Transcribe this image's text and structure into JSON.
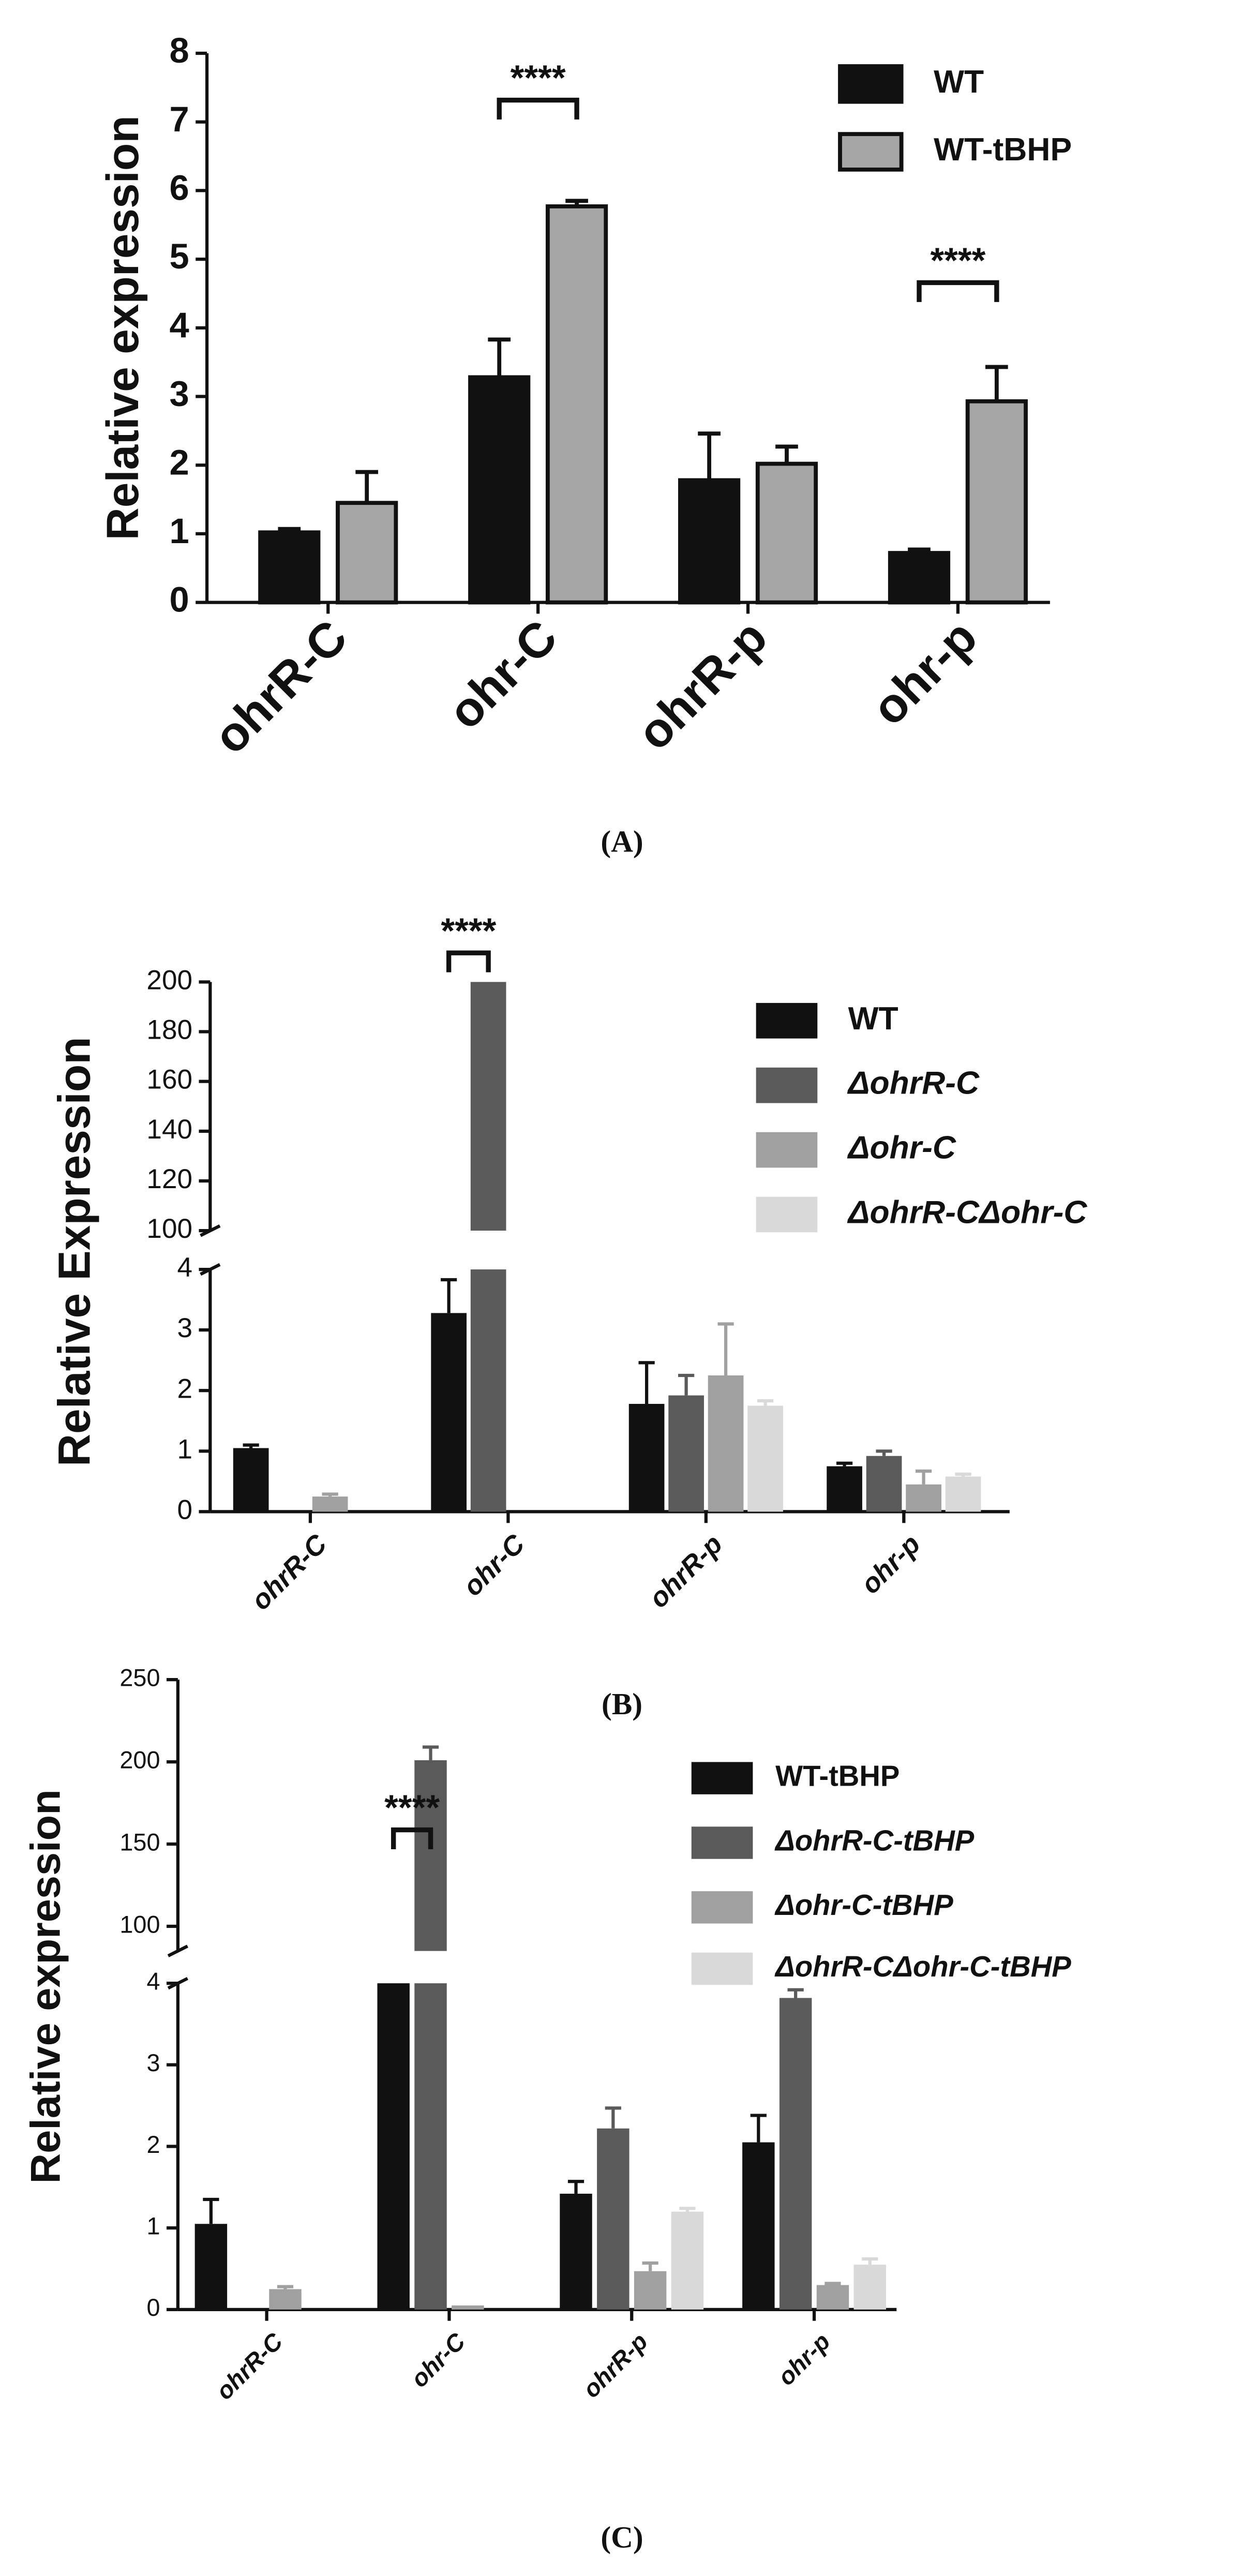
{
  "chart_data": [
    {
      "type": "bar",
      "panel_label": "(A)",
      "ylabel": "Relative expression",
      "categories": [
        "ohrR-C",
        "ohr-C",
        "ohrR-p",
        "ohr-p"
      ],
      "series": [
        {
          "name": "WT",
          "color": "#111111",
          "values": [
            1.02,
            3.28,
            1.78,
            0.72
          ],
          "errors": [
            0.05,
            0.55,
            0.68,
            0.05
          ]
        },
        {
          "name": "WT-tBHP",
          "color": "#a6a6a6",
          "values": [
            1.45,
            5.77,
            2.02,
            2.93
          ],
          "errors": [
            0.45,
            0.08,
            0.25,
            0.5
          ]
        }
      ],
      "ylim": [
        0,
        8
      ],
      "yticks": [
        0,
        1,
        2,
        3,
        4,
        5,
        6,
        7,
        8
      ],
      "annotations": [
        "****",
        "****"
      ]
    },
    {
      "type": "bar",
      "panel_label": "(B)",
      "ylabel": "Relative Expression",
      "categories": [
        "ohrR-C",
        "ohr-C",
        "ohrR-p",
        "ohr-p"
      ],
      "series": [
        {
          "name": "WT",
          "color": "#111111",
          "values": [
            1.05,
            3.28,
            1.78,
            0.75
          ],
          "errors": [
            0.05,
            0.55,
            0.68,
            0.05
          ]
        },
        {
          "name": "ΔohrR-C",
          "color": "#5a5a5a",
          "values": [
            null,
            200,
            1.92,
            0.92
          ],
          "errors": [
            null,
            null,
            0.33,
            0.08
          ]
        },
        {
          "name": "Δohr-C",
          "color": "#a0a0a0",
          "values": [
            0.25,
            null,
            2.25,
            0.45
          ],
          "errors": [
            0.04,
            null,
            0.85,
            0.22
          ]
        },
        {
          "name": "ΔohrR-CΔohr-C",
          "color": "#d9d9d9",
          "values": [
            null,
            null,
            1.75,
            0.58
          ],
          "errors": [
            null,
            null,
            0.08,
            0.04
          ]
        }
      ],
      "y_segments": [
        {
          "ylim": [
            0,
            4
          ],
          "yticks": [
            0,
            1,
            2,
            3,
            4
          ]
        },
        {
          "ylim": [
            100,
            200
          ],
          "yticks": [
            100,
            120,
            140,
            160,
            180,
            200
          ]
        }
      ],
      "annotations": [
        "****"
      ]
    },
    {
      "type": "bar",
      "panel_label": "(C)",
      "ylabel": "Relative expression",
      "categories": [
        "ohrR-C",
        "ohr-C",
        "ohrR-p",
        "ohr-p"
      ],
      "series": [
        {
          "name": "WT-tBHP",
          "color": "#111111",
          "values": [
            1.05,
            5.77,
            1.42,
            2.05
          ],
          "errors": [
            0.3,
            null,
            0.15,
            0.33
          ]
        },
        {
          "name": "ΔohrR-C-tBHP",
          "color": "#5a5a5a",
          "values": [
            null,
            201,
            2.22,
            3.82
          ],
          "errors": [
            null,
            8,
            0.25,
            0.1
          ]
        },
        {
          "name": "Δohr-C-tBHP",
          "color": "#a0a0a0",
          "values": [
            0.25,
            0.05,
            0.47,
            0.3
          ],
          "errors": [
            0.03,
            null,
            0.1,
            0.02
          ]
        },
        {
          "name": "ΔohrR-CΔohr-C-tBHP",
          "color": "#d9d9d9",
          "values": [
            null,
            null,
            1.2,
            0.55
          ],
          "errors": [
            null,
            null,
            0.04,
            0.07
          ]
        }
      ],
      "y_segments": [
        {
          "ylim": [
            0,
            4
          ],
          "yticks": [
            0,
            1,
            2,
            3,
            4
          ]
        },
        {
          "ylim": [
            85,
            250
          ],
          "yticks": [
            100,
            150,
            200,
            250
          ]
        }
      ],
      "annotations": [
        "****"
      ]
    }
  ]
}
